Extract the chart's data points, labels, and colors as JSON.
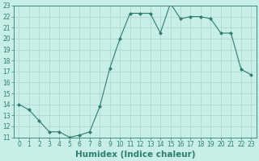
{
  "x": [
    0,
    1,
    2,
    3,
    4,
    5,
    6,
    7,
    8,
    9,
    10,
    11,
    12,
    13,
    14,
    15,
    16,
    17,
    18,
    19,
    20,
    21,
    22,
    23
  ],
  "y": [
    14.0,
    13.5,
    12.5,
    11.5,
    11.5,
    11.0,
    11.2,
    11.5,
    13.8,
    17.3,
    20.0,
    22.3,
    22.3,
    22.3,
    20.5,
    23.2,
    21.8,
    22.0,
    22.0,
    21.8,
    20.5,
    20.5,
    17.2,
    16.7
  ],
  "line_color": "#2e7d6e",
  "marker": "D",
  "marker_size": 2,
  "bg_color": "#c8eee8",
  "grid_color": "#afd8d0",
  "xlabel": "Humidex (Indice chaleur)",
  "xlim": [
    -0.5,
    23.5
  ],
  "ylim": [
    11,
    23
  ],
  "yticks": [
    11,
    12,
    13,
    14,
    15,
    16,
    17,
    18,
    19,
    20,
    21,
    22,
    23
  ],
  "xticks": [
    0,
    1,
    2,
    3,
    4,
    5,
    6,
    7,
    8,
    9,
    10,
    11,
    12,
    13,
    14,
    15,
    16,
    17,
    18,
    19,
    20,
    21,
    22,
    23
  ],
  "tick_label_fontsize": 5.5,
  "xlabel_fontsize": 7.5
}
